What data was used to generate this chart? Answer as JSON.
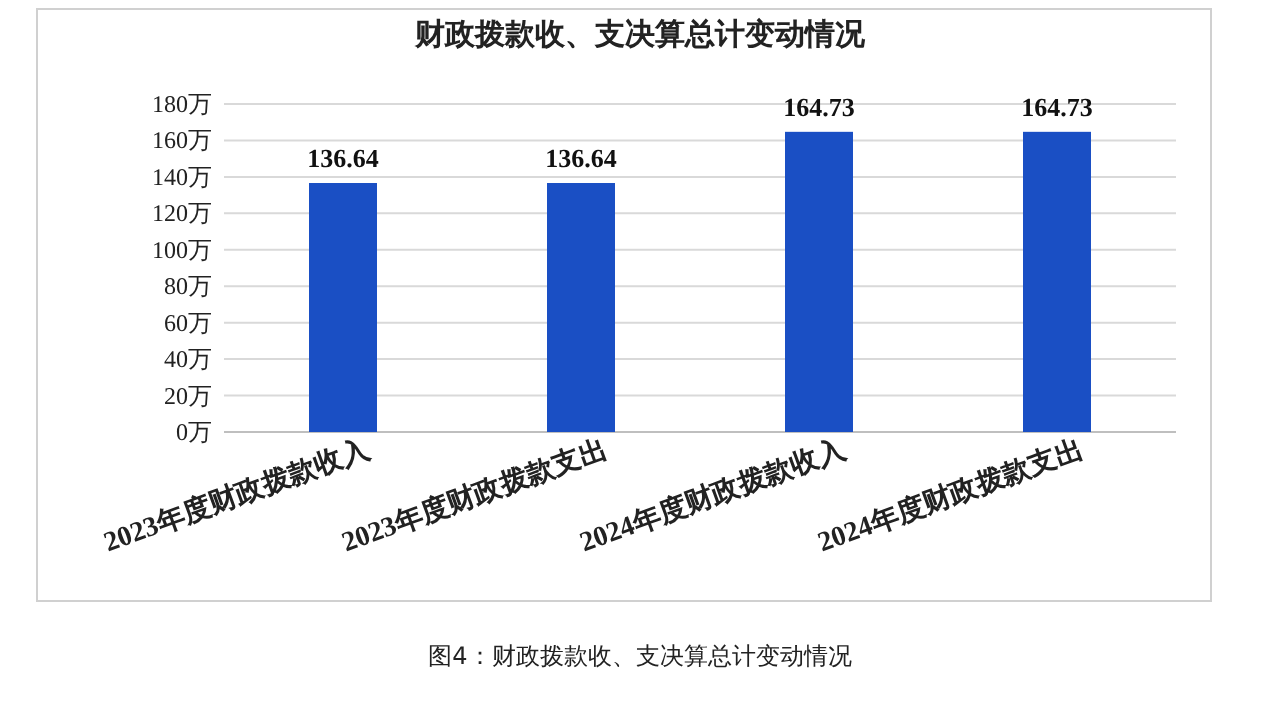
{
  "chart_data": {
    "type": "bar",
    "title": "财政拨款收、支决算总计变动情况",
    "categories": [
      "2023年度财政拨款收入",
      "2023年度财政拨款支出",
      "2024年度财政拨款收入",
      "2024年度财政拨款支出"
    ],
    "values": [
      136.64,
      136.64,
      164.73,
      164.73
    ],
    "color": "#1a4fc4",
    "data_labels": true,
    "grid": "y",
    "ylim": [
      0,
      180
    ],
    "yticks": [
      {
        "value": 0,
        "label": "0万"
      },
      {
        "value": 20,
        "label": "20万"
      },
      {
        "value": 40,
        "label": "40万"
      },
      {
        "value": 60,
        "label": "60万"
      },
      {
        "value": 80,
        "label": "80万"
      },
      {
        "value": 100,
        "label": "100万"
      },
      {
        "value": 120,
        "label": "120万"
      },
      {
        "value": 140,
        "label": "140万"
      },
      {
        "value": 160,
        "label": "160万"
      },
      {
        "value": 180,
        "label": "180万"
      }
    ],
    "annotations": [
      "图4：财政拨款收、支决算总计变动情况"
    ]
  }
}
